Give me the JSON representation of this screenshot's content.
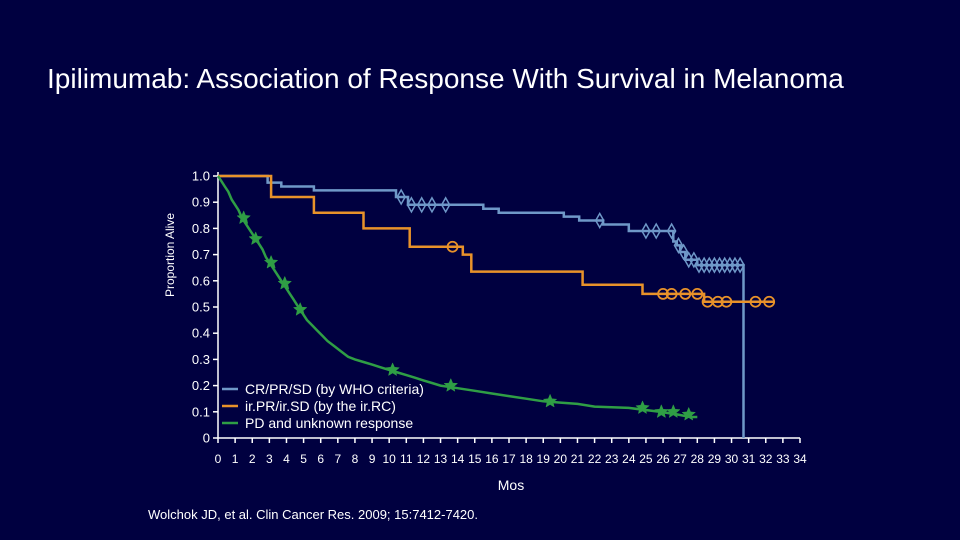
{
  "slide": {
    "title": "Ipilimumab: Association of Response With Survival in Melanoma",
    "citation": "Wolchok JD, et al. Clin Cancer Res. 2009; 15:7412-7420."
  },
  "chart_data": {
    "type": "line",
    "title": "",
    "xlabel": "Mos",
    "ylabel": "Proportion Alive",
    "xlim": [
      0,
      34
    ],
    "ylim": [
      0,
      1
    ],
    "x_ticks": [
      "0",
      "1",
      "2",
      "3",
      "4",
      "5",
      "6",
      "7",
      "8",
      "9",
      "10",
      "11",
      "12",
      "13",
      "14",
      "15",
      "16",
      "17",
      "18",
      "19",
      "20",
      "21",
      "22",
      "23",
      "24",
      "25",
      "26",
      "27",
      "28",
      "29",
      "30",
      "31",
      "32",
      "33",
      "34"
    ],
    "y_ticks": [
      "0",
      "0.1",
      "0.2",
      "0.3",
      "0.4",
      "0.5",
      "0.6",
      "0.7",
      "0.8",
      "0.9",
      "1.0"
    ],
    "y_tick_values": [
      0,
      0.1,
      0.2,
      0.3,
      0.4,
      0.5,
      0.6,
      0.7,
      0.8,
      0.9,
      1.0
    ],
    "legend": {
      "placement": "lower-left"
    },
    "series": [
      {
        "name": "CR/PR/SD (by WHO criteria)",
        "color": "#6f98c8",
        "marker": "diamond",
        "points": [
          [
            0,
            1.0
          ],
          [
            2.9,
            1.0
          ],
          [
            2.9,
            0.975
          ],
          [
            3.7,
            0.975
          ],
          [
            3.7,
            0.96
          ],
          [
            5.6,
            0.96
          ],
          [
            5.6,
            0.945
          ],
          [
            10.4,
            0.945
          ],
          [
            10.4,
            0.92
          ],
          [
            11.1,
            0.92
          ],
          [
            11.1,
            0.89
          ],
          [
            15.5,
            0.89
          ],
          [
            15.5,
            0.875
          ],
          [
            16.4,
            0.875
          ],
          [
            16.4,
            0.86
          ],
          [
            20.2,
            0.86
          ],
          [
            20.2,
            0.845
          ],
          [
            21.1,
            0.845
          ],
          [
            21.1,
            0.83
          ],
          [
            22.5,
            0.83
          ],
          [
            22.5,
            0.815
          ],
          [
            24.0,
            0.815
          ],
          [
            24.0,
            0.79
          ],
          [
            26.6,
            0.79
          ],
          [
            26.6,
            0.75
          ],
          [
            26.8,
            0.75
          ],
          [
            26.8,
            0.735
          ],
          [
            27.0,
            0.735
          ],
          [
            27.0,
            0.71
          ],
          [
            27.3,
            0.71
          ],
          [
            27.3,
            0.68
          ],
          [
            28.0,
            0.68
          ],
          [
            28.0,
            0.66
          ],
          [
            30.7,
            0.66
          ],
          [
            30.7,
            0.0
          ]
        ],
        "censored_x": [
          10.7,
          11.3,
          11.9,
          12.5,
          13.3,
          22.3,
          25.0,
          25.6,
          26.5,
          26.9,
          27.2,
          27.5,
          27.8,
          28.1,
          28.4,
          28.7,
          29.0,
          29.3,
          29.6,
          29.9,
          30.2,
          30.5
        ]
      },
      {
        "name": "ir.PR/ir.SD (by the ir.RC)",
        "color": "#e8922a",
        "marker": "circle",
        "points": [
          [
            0,
            1.0
          ],
          [
            3.1,
            1.0
          ],
          [
            3.1,
            0.92
          ],
          [
            5.6,
            0.92
          ],
          [
            5.6,
            0.86
          ],
          [
            8.5,
            0.86
          ],
          [
            8.5,
            0.8
          ],
          [
            11.2,
            0.8
          ],
          [
            11.2,
            0.73
          ],
          [
            14.3,
            0.73
          ],
          [
            14.3,
            0.7
          ],
          [
            14.8,
            0.7
          ],
          [
            14.8,
            0.635
          ],
          [
            21.3,
            0.635
          ],
          [
            21.3,
            0.585
          ],
          [
            24.8,
            0.585
          ],
          [
            24.8,
            0.55
          ],
          [
            28.4,
            0.55
          ],
          [
            28.4,
            0.52
          ],
          [
            32.5,
            0.52
          ]
        ],
        "censored_x": [
          13.7,
          26.0,
          26.5,
          27.3,
          28.0,
          28.6,
          29.2,
          29.7,
          31.4,
          32.2
        ]
      },
      {
        "name": "PD and unknown response",
        "color": "#2f9e45",
        "marker": "star",
        "points": [
          [
            0,
            1.0
          ],
          [
            0.2,
            0.98
          ],
          [
            0.4,
            0.96
          ],
          [
            0.6,
            0.94
          ],
          [
            0.8,
            0.91
          ],
          [
            1.0,
            0.89
          ],
          [
            1.2,
            0.87
          ],
          [
            1.4,
            0.84
          ],
          [
            1.6,
            0.82
          ],
          [
            1.8,
            0.8
          ],
          [
            2.0,
            0.78
          ],
          [
            2.2,
            0.76
          ],
          [
            2.4,
            0.74
          ],
          [
            2.6,
            0.72
          ],
          [
            2.8,
            0.69
          ],
          [
            3.0,
            0.67
          ],
          [
            3.2,
            0.65
          ],
          [
            3.4,
            0.63
          ],
          [
            3.6,
            0.61
          ],
          [
            3.8,
            0.59
          ],
          [
            4.0,
            0.57
          ],
          [
            4.2,
            0.55
          ],
          [
            4.4,
            0.53
          ],
          [
            4.6,
            0.51
          ],
          [
            4.8,
            0.49
          ],
          [
            5.0,
            0.47
          ],
          [
            5.2,
            0.45
          ],
          [
            5.5,
            0.43
          ],
          [
            5.8,
            0.41
          ],
          [
            6.1,
            0.39
          ],
          [
            6.4,
            0.37
          ],
          [
            6.8,
            0.35
          ],
          [
            7.2,
            0.33
          ],
          [
            7.6,
            0.31
          ],
          [
            8.0,
            0.3
          ],
          [
            8.5,
            0.29
          ],
          [
            9.0,
            0.28
          ],
          [
            9.5,
            0.27
          ],
          [
            10.0,
            0.26
          ],
          [
            10.5,
            0.25
          ],
          [
            11.0,
            0.24
          ],
          [
            11.5,
            0.23
          ],
          [
            12.0,
            0.22
          ],
          [
            12.5,
            0.21
          ],
          [
            13.0,
            0.2
          ],
          [
            14.0,
            0.19
          ],
          [
            15.0,
            0.18
          ],
          [
            16.0,
            0.17
          ],
          [
            17.0,
            0.16
          ],
          [
            18.0,
            0.15
          ],
          [
            19.0,
            0.14
          ],
          [
            20.0,
            0.135
          ],
          [
            21.0,
            0.13
          ],
          [
            22.0,
            0.12
          ],
          [
            24.0,
            0.115
          ],
          [
            25.8,
            0.1
          ],
          [
            26.8,
            0.09
          ],
          [
            27.6,
            0.08
          ],
          [
            28.0,
            0.08
          ]
        ],
        "censored_x": [
          1.5,
          2.2,
          3.1,
          3.9,
          4.8,
          10.2,
          13.6,
          19.4,
          24.8,
          25.9,
          26.6,
          27.5
        ]
      }
    ]
  }
}
